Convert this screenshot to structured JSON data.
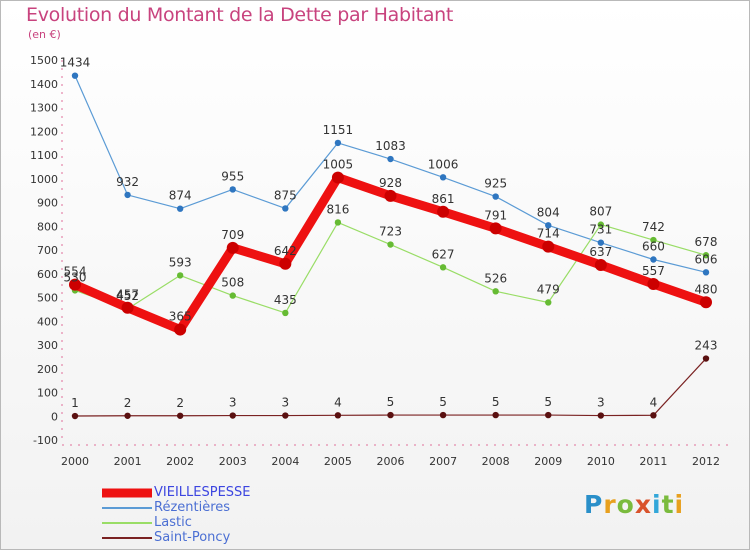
{
  "title": "Evolution du Montant de la Dette par Habitant",
  "subtitle": "(en €)",
  "brand": "Proxiti",
  "chart_data": {
    "type": "line",
    "x": [
      "2000",
      "2001",
      "2002",
      "2003",
      "2004",
      "2005",
      "2006",
      "2007",
      "2008",
      "2009",
      "2010",
      "2011",
      "2012"
    ],
    "ylim": [
      -100,
      1500
    ],
    "yticks": [
      -100,
      0,
      100,
      200,
      300,
      400,
      500,
      600,
      700,
      800,
      900,
      1000,
      1100,
      1200,
      1300,
      1400,
      1500
    ],
    "grid": false,
    "legend_position": "bottom-left",
    "series": [
      {
        "name": "VIEILLESPESSE",
        "color": "#ee1111",
        "values": [
          554,
          457,
          365,
          709,
          642,
          1005,
          928,
          861,
          791,
          714,
          637,
          557,
          480
        ]
      },
      {
        "name": "Rézentières",
        "color": "#5b9bd5",
        "values": [
          1434,
          932,
          874,
          955,
          875,
          1151,
          1083,
          1006,
          925,
          804,
          731,
          660,
          606
        ]
      },
      {
        "name": "Lastic",
        "color": "#99dd66",
        "values": [
          530,
          452,
          593,
          508,
          435,
          816,
          723,
          627,
          526,
          479,
          807,
          742,
          678
        ]
      },
      {
        "name": "Saint-Poncy",
        "color": "#7a2222",
        "values": [
          1,
          2,
          2,
          3,
          3,
          4,
          5,
          5,
          5,
          5,
          3,
          4,
          243
        ]
      }
    ]
  }
}
